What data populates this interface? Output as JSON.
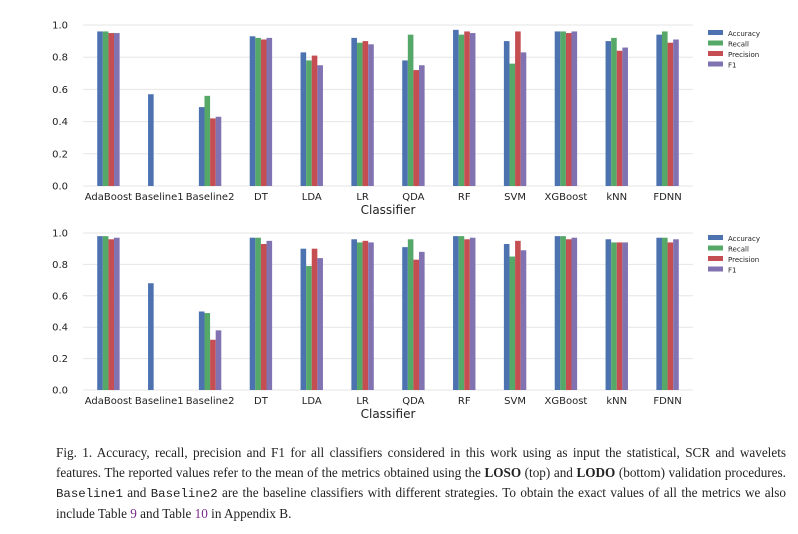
{
  "chart_data": [
    {
      "type": "bar",
      "categories": [
        "AdaBoost",
        "Baseline1",
        "Baseline2",
        "DT",
        "LDA",
        "LR",
        "QDA",
        "RF",
        "SVM",
        "XGBoost",
        "kNN",
        "FDNN"
      ],
      "series": [
        {
          "name": "Accuracy",
          "color": "#4c72b0",
          "values": [
            0.96,
            0.57,
            0.49,
            0.93,
            0.83,
            0.92,
            0.78,
            0.97,
            0.9,
            0.96,
            0.9,
            0.94
          ]
        },
        {
          "name": "Recall",
          "color": "#55a868",
          "values": [
            0.96,
            0.0,
            0.56,
            0.92,
            0.78,
            0.89,
            0.94,
            0.94,
            0.76,
            0.96,
            0.92,
            0.96
          ]
        },
        {
          "name": "Precision",
          "color": "#c44e52",
          "values": [
            0.95,
            0.0,
            0.42,
            0.91,
            0.81,
            0.9,
            0.72,
            0.96,
            0.96,
            0.95,
            0.84,
            0.89
          ]
        },
        {
          "name": "F1",
          "color": "#8172b2",
          "values": [
            0.95,
            0.0,
            0.43,
            0.92,
            0.75,
            0.88,
            0.75,
            0.95,
            0.83,
            0.96,
            0.86,
            0.91
          ]
        }
      ],
      "ylim": [
        0,
        1.0
      ],
      "yticks": [
        "0.0",
        "0.2",
        "0.4",
        "0.6",
        "0.8",
        "1.0"
      ],
      "xlabel": "Classifier",
      "ylabel": "",
      "legend_position": "top-right",
      "grid": "y"
    },
    {
      "type": "bar",
      "categories": [
        "AdaBoost",
        "Baseline1",
        "Baseline2",
        "DT",
        "LDA",
        "LR",
        "QDA",
        "RF",
        "SVM",
        "XGBoost",
        "kNN",
        "FDNN"
      ],
      "series": [
        {
          "name": "Accuracy",
          "color": "#4c72b0",
          "values": [
            0.98,
            0.68,
            0.5,
            0.97,
            0.9,
            0.96,
            0.91,
            0.98,
            0.93,
            0.98,
            0.96,
            0.97
          ]
        },
        {
          "name": "Recall",
          "color": "#55a868",
          "values": [
            0.98,
            0.0,
            0.49,
            0.97,
            0.79,
            0.94,
            0.96,
            0.98,
            0.85,
            0.98,
            0.94,
            0.97
          ]
        },
        {
          "name": "Precision",
          "color": "#c44e52",
          "values": [
            0.96,
            0.0,
            0.32,
            0.93,
            0.9,
            0.95,
            0.83,
            0.96,
            0.95,
            0.96,
            0.94,
            0.94
          ]
        },
        {
          "name": "F1",
          "color": "#8172b2",
          "values": [
            0.97,
            0.0,
            0.38,
            0.95,
            0.84,
            0.94,
            0.88,
            0.97,
            0.89,
            0.97,
            0.94,
            0.96
          ]
        }
      ],
      "ylim": [
        0,
        1.0
      ],
      "yticks": [
        "0.0",
        "0.2",
        "0.4",
        "0.6",
        "0.8",
        "1.0"
      ],
      "xlabel": "Classifier",
      "ylabel": "",
      "legend_position": "top-right",
      "grid": "y"
    }
  ],
  "caption": {
    "p1": "Fig. 1.  Accuracy, recall, precision and F1 for all classifiers considered in this work using as input the statistical, SCR and wavelets features. The reported values refer to the mean of the metrics obtained using the ",
    "loso": "LOSO",
    "p2": " (top) and ",
    "lodo": "LODO",
    "p3": " (bottom) validation procedures. ",
    "b1": "Baseline1",
    "p4": " and ",
    "b2": "Baseline2",
    "p5": " are the baseline classifiers with different strategies. To obtain the exact values of all the metrics we also include Table ",
    "t9": "9",
    "p6": " and Table ",
    "t10": "10",
    "p7": " in Appendix B."
  }
}
